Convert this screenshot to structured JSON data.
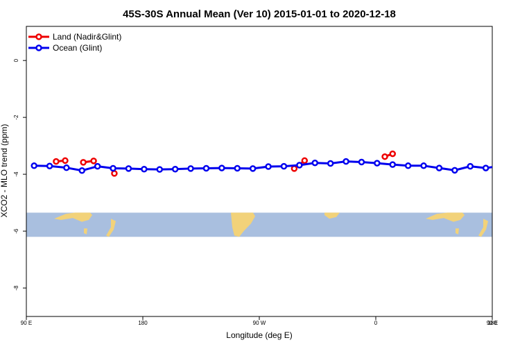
{
  "chart_data": {
    "type": "line",
    "title": "45S-30S Annual Mean (Ver 10)   2015-01-01 to 2020-12-18",
    "xlabel": "Longitude (deg E)",
    "ylabel": "XCO2 - MLO trend (ppm)",
    "xlim": [
      90,
      450
    ],
    "ylim": [
      -9.0,
      1.2
    ],
    "xticks": [
      {
        "value": 90,
        "label": "90 E"
      },
      {
        "value": 180,
        "label": "180"
      },
      {
        "value": 270,
        "label": "90 W"
      },
      {
        "value": 360,
        "label": "0"
      },
      {
        "value": 450,
        "label": "90 E"
      },
      {
        "value": 540,
        "label": "180"
      }
    ],
    "yticks": [
      {
        "value": 0,
        "label": "0"
      },
      {
        "value": -2,
        "label": "-2"
      },
      {
        "value": -4,
        "label": "-4"
      },
      {
        "value": -6,
        "label": "-6"
      },
      {
        "value": -8,
        "label": "-8"
      }
    ],
    "legend_position": "top-left",
    "map_band": {
      "ymin": -6.2,
      "ymax": -5.35,
      "ocean_color": "#a9bfdf",
      "land_color": "#f2d27a"
    },
    "series": [
      {
        "name": "Land (Nadir&Glint)",
        "color": "#ee0000",
        "segments": [
          {
            "x": [
              113,
              120
            ],
            "y": [
              -3.55,
              -3.52
            ]
          },
          {
            "x": [
              134,
              142
            ],
            "y": [
              -3.58,
              -3.53
            ]
          },
          {
            "x": [
              158
            ],
            "y": [
              -3.97
            ]
          },
          {
            "x": [
              297,
              305
            ],
            "y": [
              -3.8,
              -3.52
            ]
          },
          {
            "x": [
              367,
              373
            ],
            "y": [
              -3.38,
              -3.28
            ]
          },
          {
            "x": [
              464,
              471
            ],
            "y": [
              -3.55,
              -3.52
            ]
          },
          {
            "x": [
              486,
              494
            ],
            "y": [
              -3.57,
              -3.53
            ]
          },
          {
            "x": [
              508
            ],
            "y": [
              -3.97
            ]
          }
        ]
      },
      {
        "name": "Ocean (Glint)",
        "color": "#0000ee",
        "segments": [
          {
            "x": [
              96,
              108,
              121,
              133,
              145,
              157,
              169,
              181,
              193,
              205,
              217,
              229,
              241,
              253,
              265,
              277,
              289,
              301,
              313,
              325,
              337,
              349,
              361,
              373,
              385,
              397,
              409,
              421,
              433,
              445,
              457,
              469,
              481,
              493,
              505
            ],
            "y": [
              -3.7,
              -3.71,
              -3.77,
              -3.87,
              -3.72,
              -3.79,
              -3.8,
              -3.82,
              -3.83,
              -3.82,
              -3.8,
              -3.79,
              -3.78,
              -3.79,
              -3.8,
              -3.73,
              -3.72,
              -3.68,
              -3.6,
              -3.62,
              -3.55,
              -3.57,
              -3.61,
              -3.66,
              -3.7,
              -3.7,
              -3.78,
              -3.86,
              -3.72,
              -3.78,
              -3.7,
              -3.71,
              -3.77,
              -3.87,
              -3.72
            ]
          }
        ]
      }
    ]
  }
}
